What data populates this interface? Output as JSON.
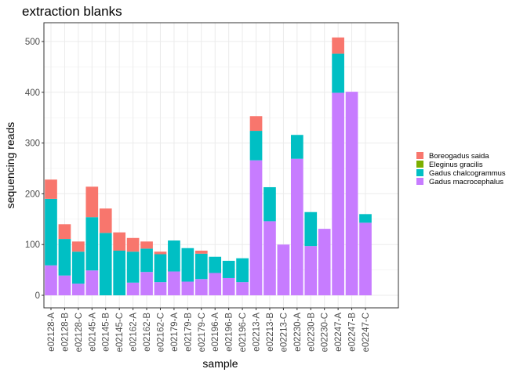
{
  "chart_data": {
    "type": "bar",
    "stacked": true,
    "title": "extraction blanks",
    "xlabel": "sample",
    "ylabel": "sequencing reads",
    "ylim": [
      0,
      530
    ],
    "yticks": [
      0,
      100,
      200,
      300,
      400,
      500
    ],
    "grid": true,
    "legend_position": "right",
    "categories": [
      "e02128-A",
      "e02128-B",
      "e02128-C",
      "e02145-A",
      "e02145-B",
      "e02145-C",
      "e02162-A",
      "e02162-B",
      "e02162-C",
      "e02179-A",
      "e02179-B",
      "e02179-C",
      "e02196-A",
      "e02196-B",
      "e02196-C",
      "e02213-A",
      "e02213-B",
      "e02213-C",
      "e02230-A",
      "e02230-B",
      "e02230-C",
      "e02247-A",
      "e02247-B",
      "e02247-C"
    ],
    "series": [
      {
        "name": "Gadus macrocephalus",
        "color": "#C77CFF",
        "values": [
          59,
          39,
          23,
          49,
          0,
          0,
          25,
          46,
          26,
          47,
          27,
          32,
          44,
          34,
          26,
          266,
          146,
          100,
          269,
          97,
          131,
          399,
          401,
          143
        ]
      },
      {
        "name": "Gadus chalcogrammus",
        "color": "#00BFC4",
        "values": [
          131,
          72,
          63,
          105,
          123,
          88,
          61,
          46,
          55,
          61,
          66,
          50,
          32,
          34,
          47,
          58,
          67,
          0,
          47,
          67,
          0,
          77,
          0,
          17
        ]
      },
      {
        "name": "Eleginus gracilis",
        "color": "#7CAE00",
        "values": [
          0,
          0,
          0,
          0,
          0,
          0,
          0,
          0,
          0,
          0,
          0,
          0,
          0,
          0,
          0,
          0,
          0,
          0,
          0,
          0,
          0,
          0,
          0,
          0
        ]
      },
      {
        "name": "Boreogadus saida",
        "color": "#F8766D",
        "values": [
          38,
          29,
          20,
          60,
          48,
          36,
          27,
          14,
          5,
          0,
          0,
          6,
          0,
          0,
          0,
          29,
          0,
          0,
          0,
          0,
          0,
          32,
          0,
          0
        ]
      }
    ],
    "legend_order": [
      "Boreogadus saida",
      "Eleginus gracilis",
      "Gadus chalcogrammus",
      "Gadus macrocephalus"
    ]
  }
}
